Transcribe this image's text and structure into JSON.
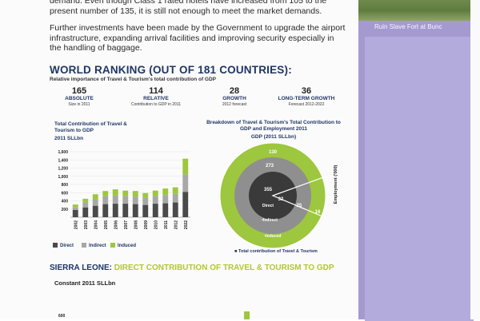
{
  "paragraphs": {
    "top": "demand. Even though Class 1 rated hotels have increased from 105 to the present number of 135, it is still not enough to meet the market demands.",
    "second": "Further investments have been made by the Government to upgrade the airport infrastructure, expanding arrival facilities and improving security especially in the handling of baggage."
  },
  "world_ranking": {
    "title": "WORLD RANKING (OUT OF 181 COUNTRIES):",
    "subtitle": "Relative importance of Travel & Tourism's total contribution of GDP",
    "items": [
      {
        "num": "165",
        "label": "ABSOLUTE",
        "desc": "Size in 2011"
      },
      {
        "num": "114",
        "label": "RELATIVE",
        "desc": "Contribution to GDP in 2011"
      },
      {
        "num": "28",
        "label": "GROWTH",
        "desc": "2012 forecast"
      },
      {
        "num": "36",
        "label": "LONG-TERM GROWTH",
        "desc": "Forecast 2012-2022"
      }
    ]
  },
  "sidebar": {
    "caption": "Ruin Slave Fort at Bunc"
  },
  "chart_data": [
    {
      "type": "bar",
      "title": "Total Contribution of Travel & Tourism to GDP",
      "subtitle": "2011 SLLbn",
      "categories": [
        "2002",
        "2003",
        "2004",
        "2005",
        "2006",
        "2007",
        "2008",
        "2009",
        "2010",
        "2011",
        "2012",
        "2022"
      ],
      "ylim": [
        0,
        1600
      ],
      "yticks": [
        "200",
        "400",
        "600",
        "800",
        "1,000",
        "1,200",
        "1,400",
        "1,600"
      ],
      "series": [
        {
          "name": "Direct",
          "color": "#4a4a4a",
          "values": [
            180,
            240,
            280,
            320,
            330,
            330,
            320,
            300,
            330,
            340,
            360,
            620
          ]
        },
        {
          "name": "Indirect",
          "color": "#a8a8a8",
          "values": [
            70,
            120,
            160,
            190,
            200,
            190,
            180,
            170,
            190,
            200,
            210,
            430
          ]
        },
        {
          "name": "Induced",
          "color": "#9dc73e",
          "values": [
            60,
            90,
            120,
            130,
            150,
            130,
            140,
            120,
            130,
            160,
            160,
            380
          ]
        }
      ],
      "legend_position": "bottom"
    },
    {
      "type": "pie",
      "title": "Breakdown of Travel & Tourism's Total Contribution to GDP and Employment 2011",
      "subtitle": "GDP (2011 SLLbn)",
      "rings": [
        {
          "name": "Direct",
          "value": 355,
          "color": "#3a3a3a"
        },
        {
          "name": "Indirect",
          "value": 273,
          "color": "#8f8f8f"
        },
        {
          "name": "Induced",
          "value": 130,
          "color": "#9dc73e"
        }
      ],
      "employment": {
        "label": "Employment ('000)",
        "values": [
          "32",
          "25",
          "16"
        ]
      },
      "labels": {
        "direct": "Direct",
        "indirect": "•Indirect",
        "induced": "•Induced"
      },
      "legend": "■ Total contribution of Travel & Tourism"
    }
  ],
  "sierra_leone": {
    "title_prefix": "SIERRA LEONE: ",
    "title_highlight": "DIRECT CONTRIBUTION OF TRAVEL & TOURISM TO GDP",
    "subtitle": "Constant 2011 SLLbn",
    "tick": "600"
  }
}
